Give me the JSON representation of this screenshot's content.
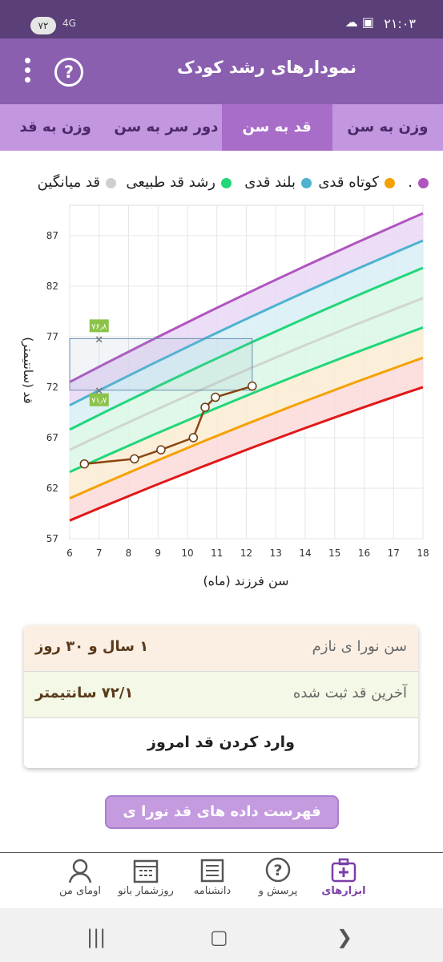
{
  "status": {
    "time": "۲۱:۰۳",
    "battery": "۷۲",
    "network": "4G"
  },
  "app_bar": {
    "title": "نمودارهای رشد کودک",
    "help_icon": "help-icon",
    "menu_icon": "more-vert-icon"
  },
  "tabs": [
    {
      "label": "وزن به سن",
      "active": false
    },
    {
      "label": "قد به سن",
      "active": true
    },
    {
      "label": "دور سر به سن",
      "active": false
    },
    {
      "label": "وزن به قد",
      "active": false
    }
  ],
  "legend": [
    {
      "label": "کوتاه قدی",
      "color": "#f5a100"
    },
    {
      "label": "بلند قدی",
      "color": "#4db3d1"
    },
    {
      "label": "رشد قد طبیعی",
      "color": "#22d67a"
    },
    {
      "label": "قد میانگین",
      "color": "#cfcfcf"
    }
  ],
  "legend_partial": ".",
  "chart_data": {
    "type": "line",
    "xlabel": "سن فرزند (ماه)",
    "ylabel": "قد (سانتیمتر)",
    "xlim": [
      6,
      18
    ],
    "ylim": [
      57,
      90
    ],
    "x_ticks": [
      6,
      7,
      8,
      9,
      10,
      11,
      12,
      13,
      14,
      15,
      16,
      17,
      18
    ],
    "y_ticks": [
      57,
      62,
      67,
      72,
      77,
      82,
      87
    ],
    "curves": [
      {
        "name": "p97",
        "color": "#b055c0",
        "x": [
          6,
          18
        ],
        "y": [
          72.5,
          89.2
        ]
      },
      {
        "name": "p85",
        "color": "#4db3d1",
        "x": [
          6,
          18
        ],
        "y": [
          70.2,
          86.5
        ]
      },
      {
        "name": "p50",
        "color": "#22d67a",
        "x": [
          6,
          18
        ],
        "y": [
          67.8,
          83.8
        ]
      },
      {
        "name": "avg",
        "color": "#cfd6d0",
        "x": [
          6,
          18
        ],
        "y": [
          65.8,
          80.8
        ]
      },
      {
        "name": "p15",
        "color": "#22d67a",
        "x": [
          6,
          18
        ],
        "y": [
          63.6,
          77.9
        ]
      },
      {
        "name": "p3",
        "color": "#f5a100",
        "x": [
          6,
          18
        ],
        "y": [
          61.0,
          74.9
        ]
      },
      {
        "name": "p0",
        "color": "#e01818",
        "x": [
          6,
          18
        ],
        "y": [
          58.8,
          72.0
        ]
      }
    ],
    "bands": [
      {
        "upper": "p97",
        "lower": "p85",
        "color": "#e9d8f4"
      },
      {
        "upper": "p85",
        "lower": "p50",
        "color": "#d7eef6"
      },
      {
        "upper": "p50",
        "lower": "p15",
        "color": "#d9f7e6"
      },
      {
        "upper": "p15",
        "lower": "p3",
        "color": "#fbecd2"
      },
      {
        "upper": "p3",
        "lower": "p0",
        "color": "#fbd9d9"
      }
    ],
    "series": [
      {
        "name": "child",
        "color": "#8b4513",
        "x": [
          6.5,
          8.2,
          9.1,
          10.2,
          10.6,
          10.95,
          12.2
        ],
        "y": [
          64.4,
          64.9,
          65.8,
          67.0,
          70.0,
          71.0,
          72.1
        ]
      }
    ],
    "marker": {
      "x": 7,
      "y_top": 76.8,
      "y_bottom": 71.7,
      "label_top": "۷۶٫۸",
      "label_bottom": "۷۱٫۷"
    },
    "highlight_box": {
      "x0": 6,
      "x1": 12.2,
      "y0": 71.7,
      "y1": 76.8
    }
  },
  "summary": {
    "age_label": "سن نورا ی نازم",
    "age_value": "۱ سال و ۳۰ روز",
    "height_label": "آخرین قد ثبت شده",
    "height_value": "۷۲/۱ سانتیمتر",
    "action_label": "وارد کردن قد امروز"
  },
  "list_button": "فهرست داده های قد نورا ی نازم",
  "bottom_nav": [
    {
      "label": "ابزارهای",
      "icon": "medical-kit-icon",
      "active": true
    },
    {
      "label": "پرسش و",
      "icon": "question-bubble-icon",
      "active": false
    },
    {
      "label": "دانشنامه",
      "icon": "newspaper-icon",
      "active": false
    },
    {
      "label": "روزشمار بانو",
      "icon": "calendar-icon",
      "active": false
    },
    {
      "label": "اومای من",
      "icon": "user-avatar-icon",
      "active": false
    }
  ]
}
